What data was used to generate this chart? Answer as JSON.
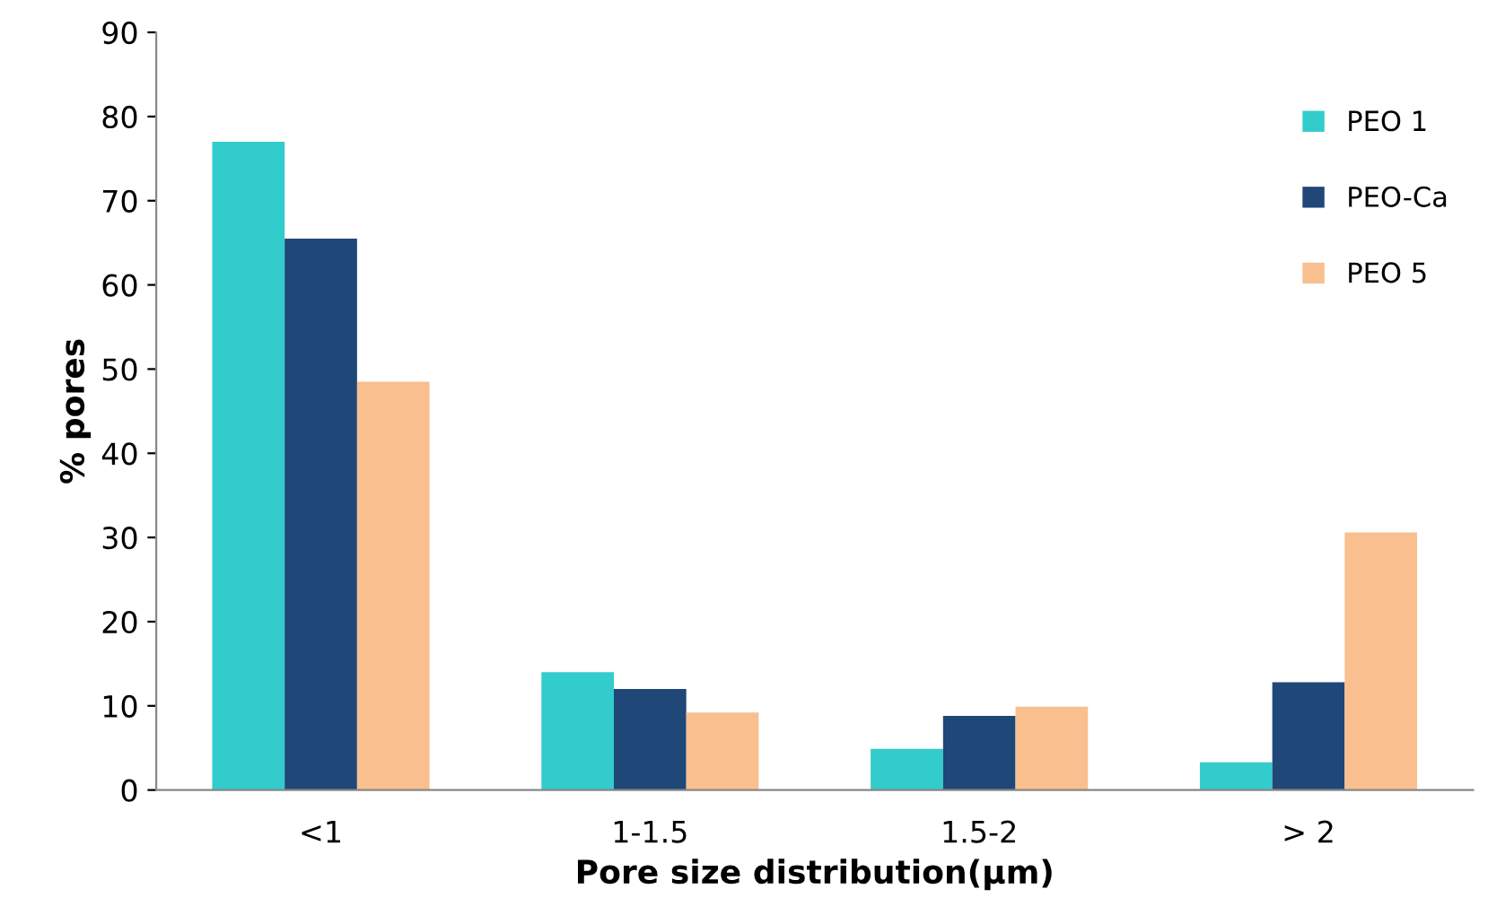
{
  "chart_data": {
    "type": "bar",
    "xlabel": "Pore size distribution(µm)",
    "ylabel": "% pores",
    "categories": [
      "<1",
      "1-1.5",
      "1.5-2",
      "> 2"
    ],
    "series": [
      {
        "name": "PEO 1",
        "color": "#33cccc",
        "values": [
          77,
          14,
          4.9,
          3.3
        ]
      },
      {
        "name": "PEO-Ca",
        "color": "#1f4778",
        "values": [
          65.5,
          12,
          8.8,
          12.8
        ]
      },
      {
        "name": "PEO 5",
        "color": "#f9bf8f",
        "values": [
          48.5,
          9.2,
          9.9,
          30.6
        ]
      }
    ],
    "ylim": [
      0,
      90
    ],
    "yticks": [
      0,
      10,
      20,
      30,
      40,
      50,
      60,
      70,
      80,
      90
    ],
    "grid": false,
    "legend": "top right"
  }
}
